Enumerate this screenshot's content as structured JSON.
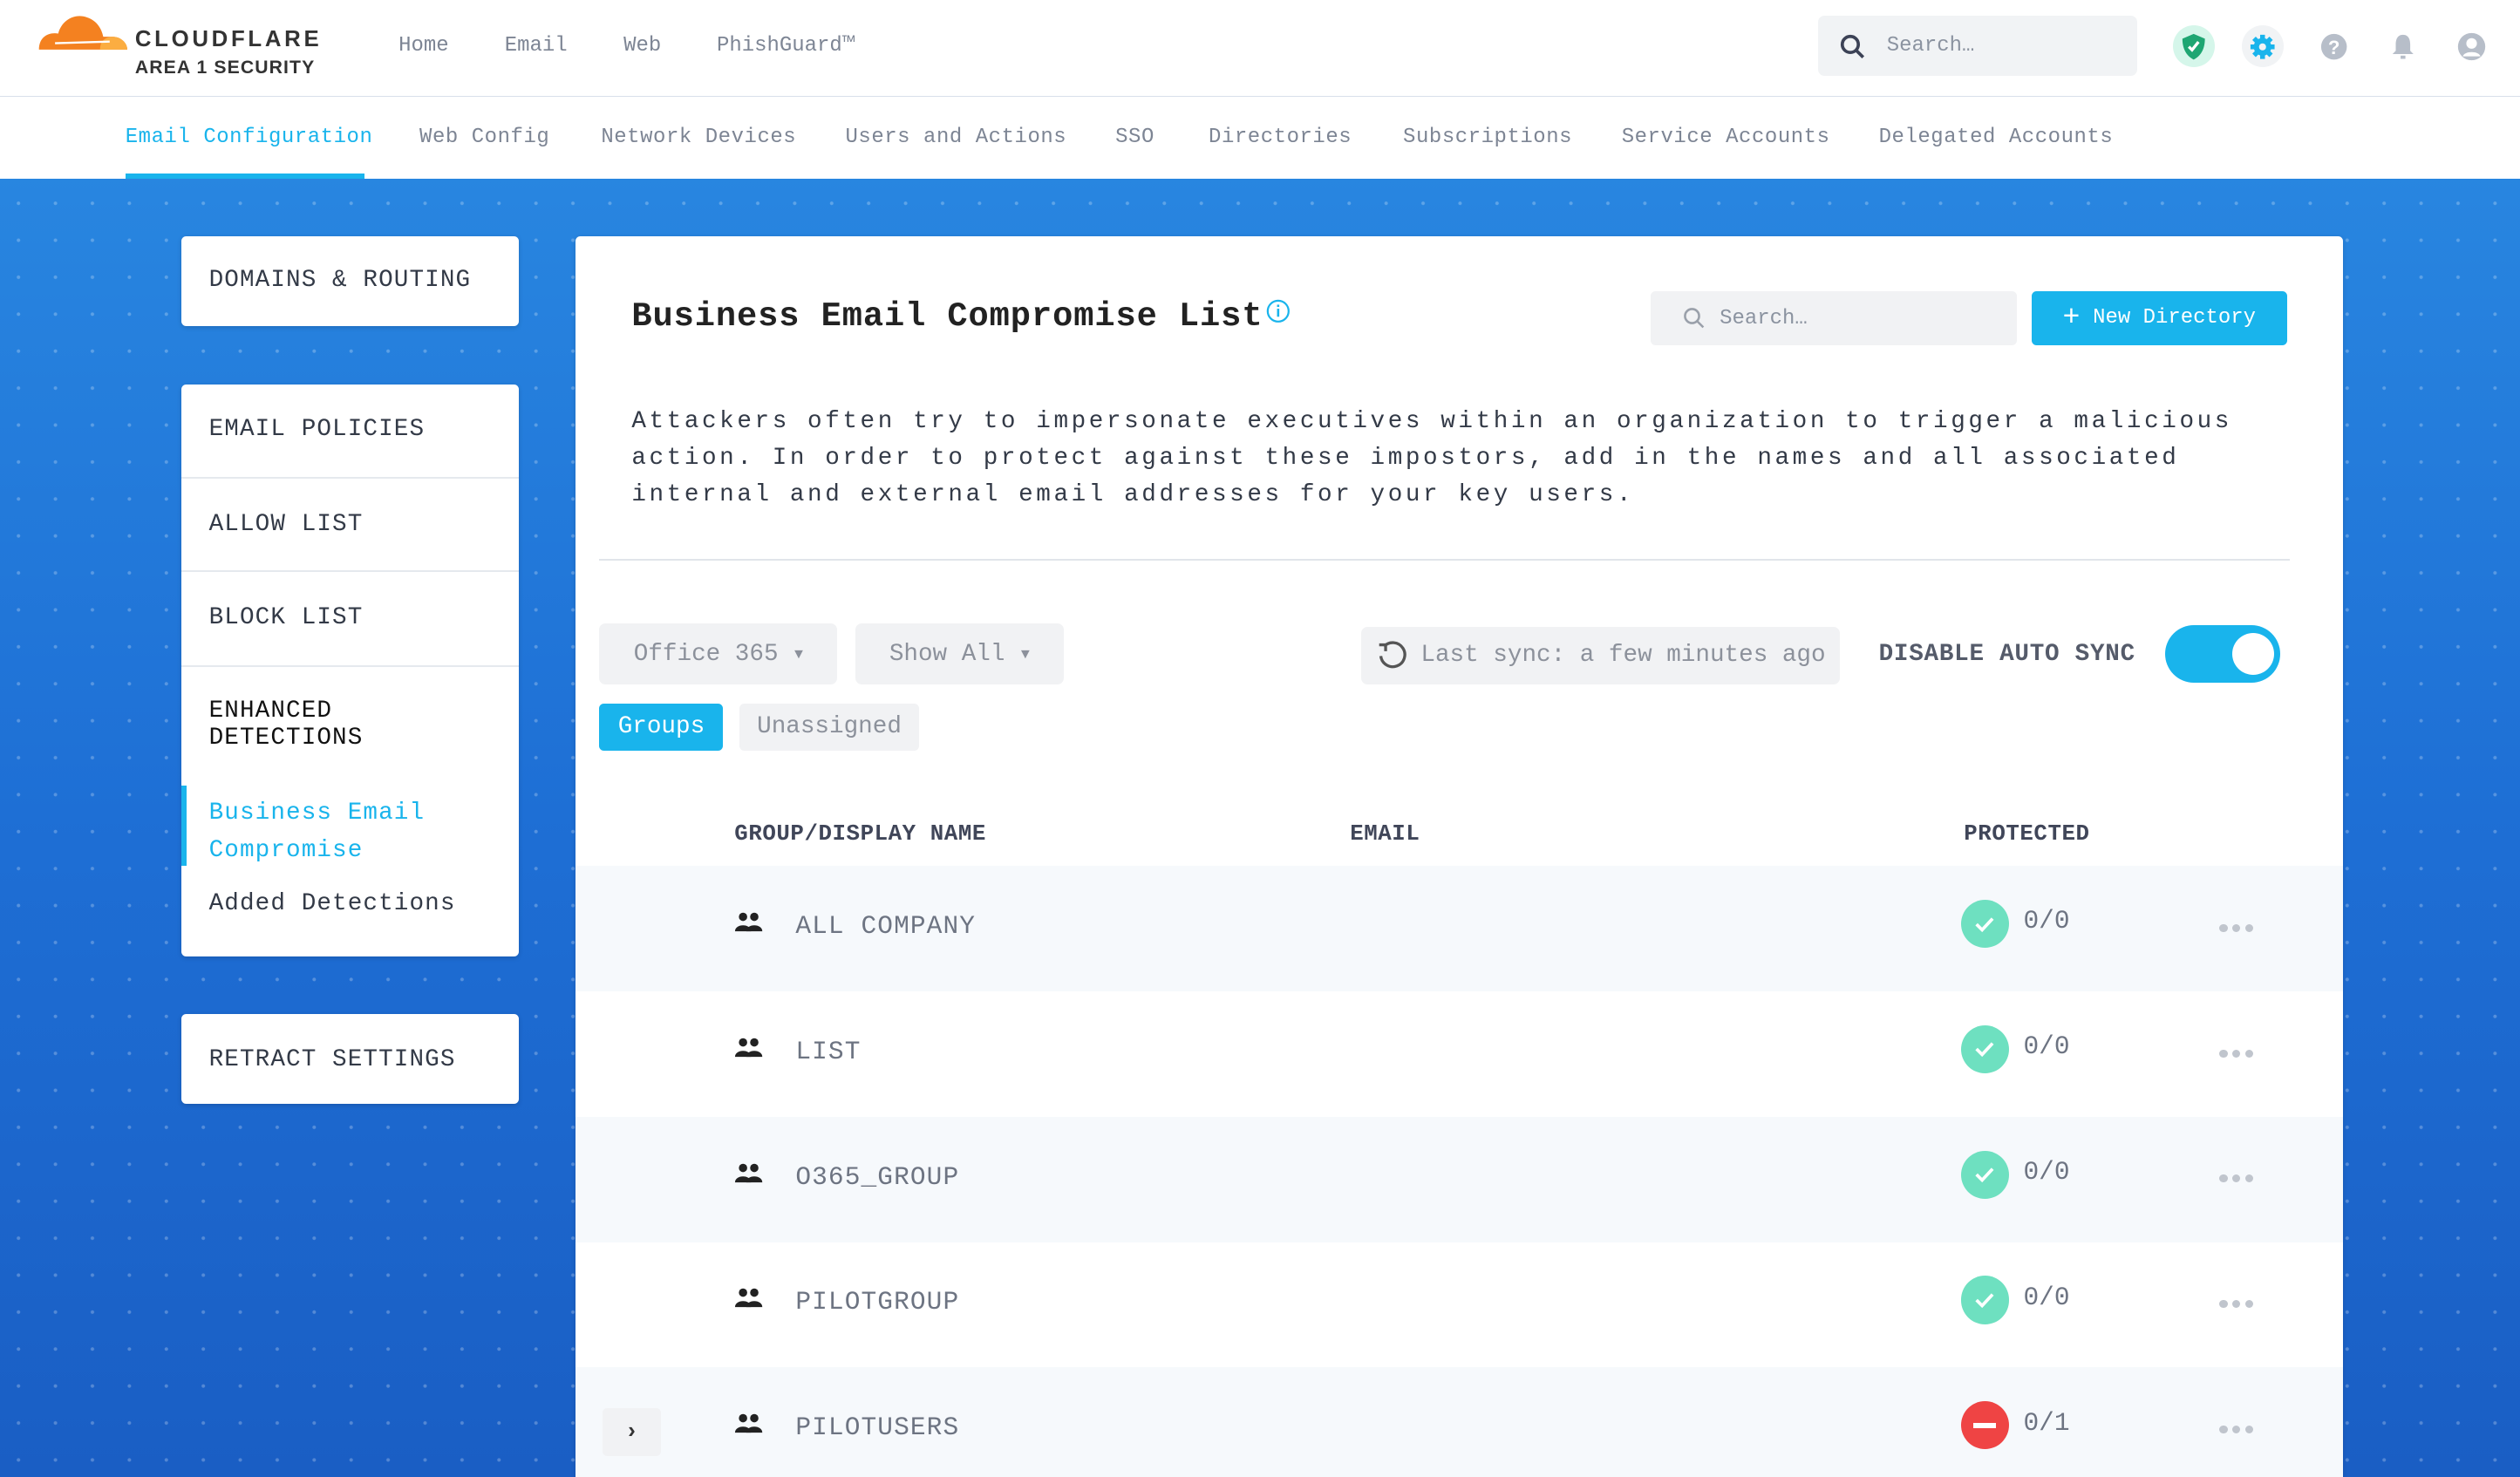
{
  "brand": {
    "name": "CLOUDFLARE",
    "sub": "AREA 1 SECURITY",
    "orange": "#f48120"
  },
  "topnav": {
    "items": [
      "Home",
      "Email",
      "Web",
      "PhishGuard™"
    ]
  },
  "top_search": {
    "placeholder": "Search…"
  },
  "top_icons": [
    "shield-check-icon",
    "gear-icon",
    "help-icon",
    "bell-icon",
    "user-icon"
  ],
  "subnav": {
    "items": [
      "Email Configuration",
      "Web Config",
      "Network Devices",
      "Users and Actions",
      "SSO",
      "Directories",
      "Subscriptions",
      "Service Accounts",
      "Delegated Accounts"
    ],
    "active": 0
  },
  "sidebar": {
    "domains": "DOMAINS & ROUTING",
    "email_policies": "EMAIL POLICIES",
    "allow_list": "ALLOW LIST",
    "block_list": "BLOCK LIST",
    "enhanced_1": "ENHANCED",
    "enhanced_2": "DETECTIONS",
    "bec_1": "Business Email",
    "bec_2": "Compromise",
    "added": "Added Detections",
    "retract": "RETRACT SETTINGS"
  },
  "main": {
    "title": "Business Email Compromise List",
    "search_placeholder": "Search…",
    "new_button": "New Directory",
    "description": "Attackers often try to impersonate executives within an organization to trigger a malicious action. In order to protect against these impostors, add in the names and all associated internal and external email addresses for your key users.",
    "source_select": "Office 365",
    "filter_select": "Show All",
    "sync_status": "Last sync: a few minutes ago",
    "auto_sync_label": "DISABLE AUTO SYNC",
    "auto_sync_on": true,
    "tabs": [
      "Groups",
      "Unassigned"
    ],
    "active_tab": 0,
    "columns": [
      "GROUP/DISPLAY NAME",
      "EMAIL",
      "PROTECTED"
    ],
    "rows": [
      {
        "name": "ALL COMPANY",
        "email": "",
        "protected": "0/0",
        "status": "ok"
      },
      {
        "name": "LIST",
        "email": "",
        "protected": "0/0",
        "status": "ok"
      },
      {
        "name": "O365_GROUP",
        "email": "",
        "protected": "0/0",
        "status": "ok"
      },
      {
        "name": "PILOTGROUP",
        "email": "",
        "protected": "0/0",
        "status": "ok"
      },
      {
        "name": "PILOTUSERS",
        "email": "",
        "protected": "0/1",
        "status": "error",
        "expandable": true
      }
    ]
  },
  "colors": {
    "accent": "#19b4ec",
    "ok": "#6ee0c0",
    "error": "#ef4444"
  }
}
